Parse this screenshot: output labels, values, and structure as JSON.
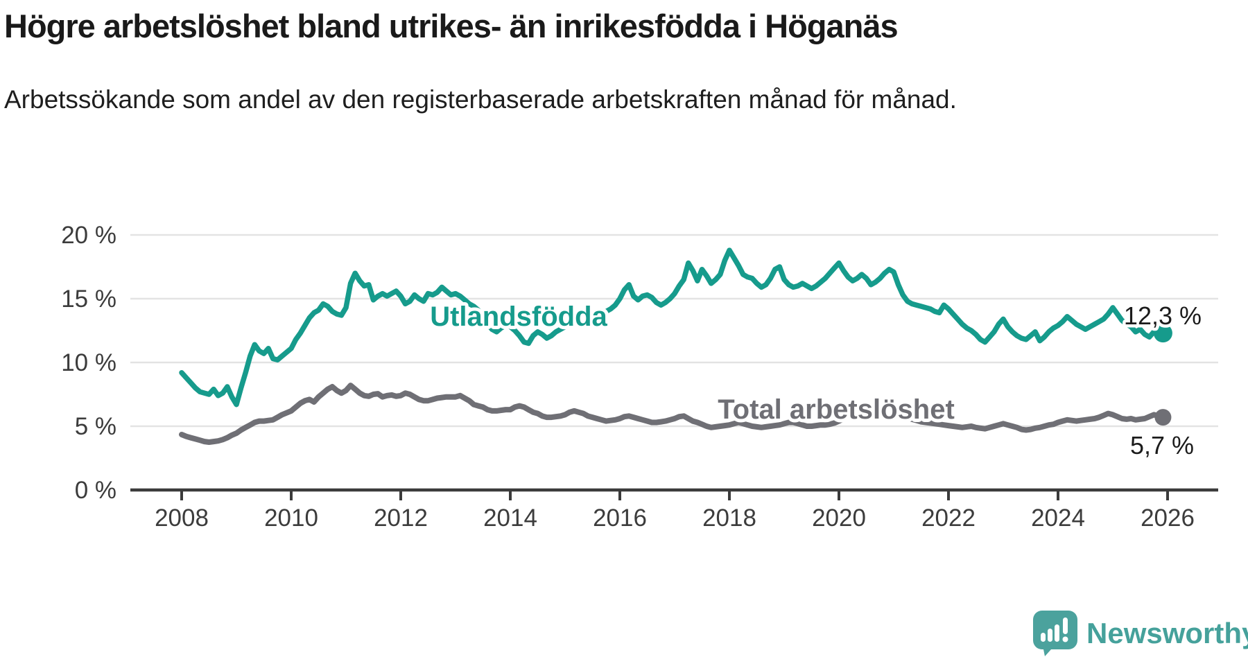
{
  "title": "Högre arbetslöshet bland utrikes- än inrikesfödda i Höganäs",
  "subtitle": "Arbetssökande som andel av den registerbaserade arbetskraften månad för månad.",
  "branding": {
    "logo_text": "Newsworthy",
    "logo_color": "#4BA29D",
    "text_color": "#45A19B"
  },
  "colors": {
    "background": "#ffffff",
    "grid": "#e3e3e3",
    "axis": "#3b3b3b",
    "tick_label": "#3c3c3c",
    "value_label": "#1b1b1b",
    "series_foreign_born": "#169B8C",
    "series_total": "#6F6F75"
  },
  "chart_data": {
    "type": "line",
    "unit": "%",
    "grid": true,
    "x_axis": {
      "tick_years": [
        2008,
        2010,
        2012,
        2014,
        2016,
        2018,
        2020,
        2022,
        2024,
        2026
      ]
    },
    "y_axis": {
      "ticks": [
        0,
        5,
        10,
        15,
        20
      ],
      "tick_labels": [
        "0 %",
        "5 %",
        "10 %",
        "15 %",
        "20 %"
      ],
      "ylim": [
        0,
        20
      ]
    },
    "series": [
      {
        "id": "utlandsfodda",
        "name": "Utlandsfödda",
        "color": "#169B8C",
        "end_label": "12,3 %",
        "end_value": 12.3,
        "start_year": 2008,
        "points_per_year": 12,
        "values": [
          9.2,
          8.8,
          8.4,
          8.0,
          7.7,
          7.6,
          7.5,
          7.9,
          7.4,
          7.6,
          8.1,
          7.3,
          6.7,
          8.0,
          9.2,
          10.5,
          11.4,
          10.9,
          10.7,
          11.1,
          10.3,
          10.2,
          10.5,
          10.8,
          11.1,
          11.8,
          12.3,
          12.9,
          13.5,
          13.9,
          14.1,
          14.6,
          14.4,
          14.0,
          13.8,
          13.7,
          14.3,
          16.2,
          17.0,
          16.4,
          16.0,
          16.1,
          14.9,
          15.2,
          15.4,
          15.2,
          15.4,
          15.6,
          15.2,
          14.6,
          14.8,
          15.3,
          15.0,
          14.8,
          15.4,
          15.3,
          15.5,
          15.9,
          15.6,
          15.3,
          15.4,
          15.2,
          14.9,
          14.6,
          14.4,
          14.1,
          13.6,
          13.0,
          12.6,
          12.4,
          12.7,
          12.9,
          12.8,
          12.5,
          12.1,
          11.6,
          11.5,
          12.1,
          12.4,
          12.2,
          11.9,
          12.1,
          12.4,
          12.6,
          12.8,
          13.0,
          13.3,
          13.2,
          13.0,
          13.2,
          13.5,
          13.6,
          13.8,
          14.0,
          14.2,
          14.5,
          15.0,
          15.7,
          16.1,
          15.2,
          14.9,
          15.2,
          15.3,
          15.1,
          14.7,
          14.5,
          14.7,
          15.0,
          15.4,
          16.0,
          16.5,
          17.8,
          17.2,
          16.4,
          17.3,
          16.8,
          16.2,
          16.5,
          16.9,
          18.0,
          18.8,
          18.2,
          17.6,
          16.9,
          16.7,
          16.6,
          16.2,
          15.9,
          16.1,
          16.6,
          17.3,
          17.5,
          16.5,
          16.1,
          15.9,
          16.0,
          16.2,
          16.0,
          15.8,
          16.0,
          16.3,
          16.6,
          17.0,
          17.4,
          17.8,
          17.2,
          16.7,
          16.4,
          16.6,
          16.9,
          16.6,
          16.1,
          16.3,
          16.6,
          17.0,
          17.3,
          17.1,
          16.1,
          15.3,
          14.8,
          14.6,
          14.5,
          14.4,
          14.3,
          14.2,
          14.0,
          13.9,
          14.5,
          14.2,
          13.8,
          13.4,
          13.0,
          12.7,
          12.5,
          12.2,
          11.8,
          11.6,
          12.0,
          12.4,
          13.0,
          13.4,
          12.8,
          12.4,
          12.1,
          11.9,
          11.8,
          12.1,
          12.4,
          11.7,
          12.0,
          12.4,
          12.7,
          12.9,
          13.2,
          13.6,
          13.3,
          13.0,
          12.8,
          12.6,
          12.8,
          13.0,
          13.2,
          13.4,
          13.8,
          14.3,
          13.8,
          13.3,
          13.0,
          12.8,
          12.4,
          12.6,
          12.2,
          12.0,
          12.4,
          12.1,
          12.3
        ]
      },
      {
        "id": "total",
        "name": "Total arbetslöshet",
        "color": "#6F6F75",
        "end_label": "5,7 %",
        "end_value": 5.7,
        "start_year": 2008,
        "points_per_year": 12,
        "values": [
          4.35,
          4.2,
          4.1,
          4.0,
          3.9,
          3.8,
          3.75,
          3.8,
          3.85,
          3.95,
          4.1,
          4.3,
          4.45,
          4.7,
          4.9,
          5.1,
          5.3,
          5.4,
          5.4,
          5.45,
          5.5,
          5.7,
          5.9,
          6.05,
          6.2,
          6.5,
          6.8,
          7.0,
          7.1,
          6.9,
          7.3,
          7.6,
          7.9,
          8.1,
          7.8,
          7.6,
          7.8,
          8.2,
          7.9,
          7.6,
          7.4,
          7.35,
          7.5,
          7.55,
          7.3,
          7.4,
          7.45,
          7.35,
          7.4,
          7.6,
          7.5,
          7.3,
          7.1,
          7.0,
          7.0,
          7.1,
          7.2,
          7.25,
          7.3,
          7.3,
          7.3,
          7.4,
          7.2,
          7.0,
          6.7,
          6.6,
          6.5,
          6.3,
          6.2,
          6.2,
          6.25,
          6.3,
          6.3,
          6.5,
          6.6,
          6.5,
          6.3,
          6.1,
          6.0,
          5.8,
          5.7,
          5.7,
          5.75,
          5.8,
          5.9,
          6.1,
          6.2,
          6.1,
          6.0,
          5.8,
          5.7,
          5.6,
          5.5,
          5.4,
          5.45,
          5.5,
          5.6,
          5.75,
          5.8,
          5.7,
          5.6,
          5.5,
          5.4,
          5.3,
          5.3,
          5.35,
          5.4,
          5.5,
          5.6,
          5.75,
          5.8,
          5.6,
          5.4,
          5.3,
          5.15,
          5.0,
          4.9,
          4.95,
          5.0,
          5.05,
          5.1,
          5.2,
          5.3,
          5.2,
          5.1,
          5.0,
          4.95,
          4.9,
          4.95,
          5.0,
          5.05,
          5.1,
          5.2,
          5.3,
          5.3,
          5.2,
          5.1,
          5.0,
          5.0,
          5.05,
          5.1,
          5.1,
          5.15,
          5.25,
          5.4,
          5.6,
          5.8,
          6.1,
          6.3,
          6.45,
          6.5,
          6.5,
          6.4,
          6.3,
          6.2,
          6.1,
          5.95,
          5.85,
          5.75,
          5.65,
          5.55,
          5.45,
          5.35,
          5.3,
          5.25,
          5.2,
          5.15,
          5.1,
          5.05,
          5.0,
          4.95,
          4.9,
          4.95,
          5.0,
          4.9,
          4.85,
          4.8,
          4.9,
          5.0,
          5.1,
          5.2,
          5.1,
          5.0,
          4.9,
          4.75,
          4.7,
          4.75,
          4.85,
          4.9,
          5.0,
          5.1,
          5.15,
          5.3,
          5.4,
          5.5,
          5.45,
          5.4,
          5.45,
          5.5,
          5.55,
          5.6,
          5.7,
          5.85,
          6.0,
          5.9,
          5.75,
          5.6,
          5.55,
          5.6,
          5.5,
          5.55,
          5.6,
          5.75,
          5.9,
          5.8,
          5.7
        ]
      }
    ]
  }
}
